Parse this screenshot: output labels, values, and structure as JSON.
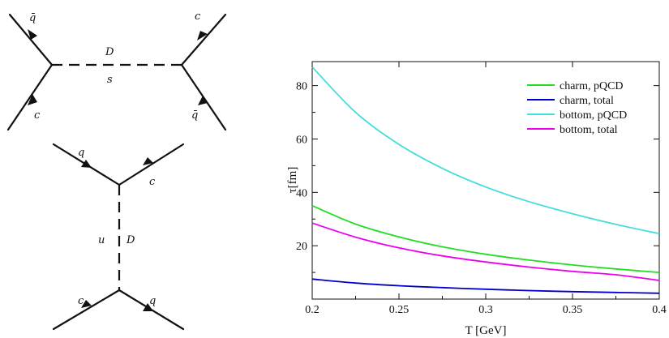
{
  "diagrams": {
    "s_channel": {
      "top_left": "q̄",
      "bottom_left": "c",
      "top_right": "c",
      "bottom_right": "q̄",
      "propagator": "D",
      "channel": "s"
    },
    "u_channel": {
      "top_left": "q",
      "top_right": "c",
      "bottom_left": "c",
      "bottom_right": "q",
      "propagator": "D",
      "channel": "u"
    }
  },
  "chart_data": {
    "type": "line",
    "xlabel": "T [GeV]",
    "ylabel": "τ[fm]",
    "xlim": [
      0.2,
      0.4
    ],
    "ylim": [
      0,
      89
    ],
    "xticks": [
      "0.2",
      "0.25",
      "0.3",
      "0.35",
      "0.4"
    ],
    "yticks": [
      "20",
      "40",
      "60",
      "80"
    ],
    "grid": false,
    "legend_position": "top-right",
    "x": [
      0.2,
      0.225,
      0.25,
      0.275,
      0.3,
      0.325,
      0.35,
      0.375,
      0.4
    ],
    "series": [
      {
        "name": "charm, pQCD",
        "color": "#22dd22",
        "values": [
          35.0,
          28.1,
          23.3,
          19.6,
          16.8,
          14.6,
          12.8,
          11.3,
          10.0
        ]
      },
      {
        "name": "charm, total",
        "color": "#0000cc",
        "values": [
          7.5,
          6.0,
          5.0,
          4.3,
          3.7,
          3.2,
          2.8,
          2.5,
          2.2
        ]
      },
      {
        "name": "bottom, pQCD",
        "color": "#44dddd",
        "values": [
          87.0,
          70.0,
          58.0,
          49.0,
          42.0,
          36.5,
          32.0,
          28.0,
          24.5
        ]
      },
      {
        "name": "bottom, total",
        "color": "#ee00ee",
        "values": [
          28.5,
          23.2,
          19.2,
          16.2,
          13.9,
          12.0,
          10.4,
          9.1,
          7.0
        ]
      }
    ]
  }
}
